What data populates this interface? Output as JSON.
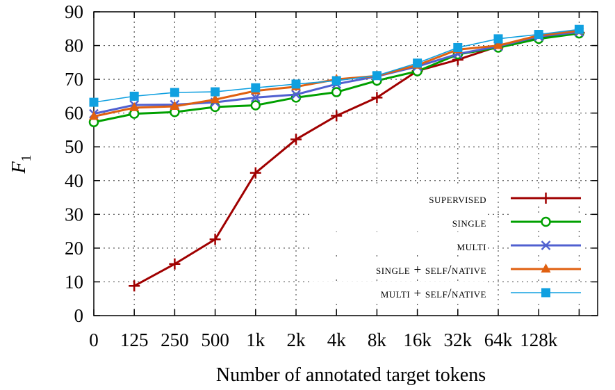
{
  "chart_data": {
    "type": "line",
    "xlabel": "Number of annotated target tokens",
    "ylabel": "F",
    "ylabel_subscript": "1",
    "categories": [
      "0",
      "125",
      "250",
      "500",
      "1k",
      "2k",
      "4k",
      "8k",
      "16k",
      "32k",
      "64k",
      "128k",
      ""
    ],
    "ylim": [
      0,
      90
    ],
    "yticks": [
      "0",
      "10",
      "20",
      "30",
      "40",
      "50",
      "60",
      "70",
      "80",
      "90"
    ],
    "grid": true,
    "legend_position": "bottom-right",
    "series": [
      {
        "name": "supervised",
        "color": "#a00000",
        "marker": "plus",
        "values": [
          null,
          8.8,
          15.3,
          22.6,
          42.3,
          52.2,
          59.2,
          64.6,
          72.5,
          75.8,
          79.8,
          82.1,
          83.8
        ]
      },
      {
        "name": "single",
        "color": "#00a000",
        "marker": "circle",
        "values": [
          57.3,
          59.8,
          60.3,
          61.8,
          62.3,
          64.6,
          66.2,
          69.6,
          72.4,
          77.4,
          79.4,
          82.0,
          83.6
        ]
      },
      {
        "name": "multi",
        "color": "#5060d0",
        "marker": "cross",
        "values": [
          59.8,
          62.4,
          62.5,
          63.2,
          64.6,
          65.5,
          68.6,
          70.9,
          73.8,
          77.5,
          79.8,
          82.7,
          84.0
        ]
      },
      {
        "name": "single + self/native",
        "color": "#e06010",
        "marker": "triangle",
        "values": [
          59.0,
          61.6,
          62.0,
          64.0,
          66.6,
          67.8,
          70.0,
          71.0,
          74.2,
          78.8,
          80.0,
          83.0,
          84.4
        ]
      },
      {
        "name": "multi + self/native",
        "color": "#10a0e0",
        "marker": "square",
        "values": [
          63.2,
          65.0,
          66.1,
          66.3,
          67.5,
          68.6,
          69.6,
          71.1,
          74.8,
          79.4,
          82.0,
          83.3,
          84.8
        ]
      }
    ]
  }
}
